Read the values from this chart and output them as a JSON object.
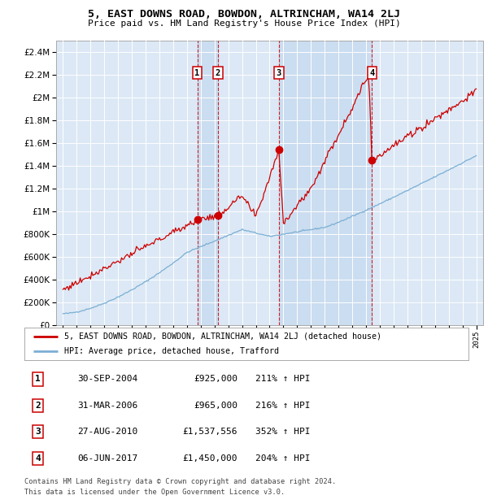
{
  "title": "5, EAST DOWNS ROAD, BOWDON, ALTRINCHAM, WA14 2LJ",
  "subtitle": "Price paid vs. HM Land Registry's House Price Index (HPI)",
  "legend_line1": "5, EAST DOWNS ROAD, BOWDON, ALTRINCHAM, WA14 2LJ (detached house)",
  "legend_line2": "HPI: Average price, detached house, Trafford",
  "footer1": "Contains HM Land Registry data © Crown copyright and database right 2024.",
  "footer2": "This data is licensed under the Open Government Licence v3.0.",
  "transactions": [
    {
      "label": "1",
      "date": "30-SEP-2004",
      "price": 925000,
      "pct": "211% ↑ HPI",
      "x": 2004.75
    },
    {
      "label": "2",
      "date": "31-MAR-2006",
      "price": 965000,
      "pct": "216% ↑ HPI",
      "x": 2006.25
    },
    {
      "label": "3",
      "date": "27-AUG-2010",
      "price": 1537556,
      "pct": "352% ↑ HPI",
      "x": 2010.67
    },
    {
      "label": "4",
      "date": "06-JUN-2017",
      "price": 1450000,
      "pct": "204% ↑ HPI",
      "x": 2017.44
    }
  ],
  "hpi_color": "#7bafd4",
  "property_color": "#cc0000",
  "background_color": "#ffffff",
  "plot_bg_color": "#dce8f5",
  "shade_color": "#c5d9ee",
  "grid_color": "#ffffff",
  "ylim": [
    0,
    2500000
  ],
  "xlim": [
    1994.5,
    2025.5
  ],
  "ylabel_ticks": [
    0,
    200000,
    400000,
    600000,
    800000,
    1000000,
    1200000,
    1400000,
    1600000,
    1800000,
    2000000,
    2200000,
    2400000
  ]
}
